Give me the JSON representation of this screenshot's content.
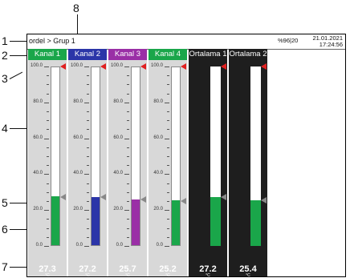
{
  "callouts": [
    "1",
    "2",
    "3",
    "4",
    "5",
    "6",
    "7",
    "8"
  ],
  "header": {
    "breadcrumb": "ordel > Grup 1",
    "percent": "%96|20",
    "date": "21.01.2021",
    "time": "17:24:56"
  },
  "colors": {
    "kanal1": "#1aa64a",
    "kanal2": "#2b35a8",
    "kanal3": "#9a2fa6",
    "kanal4": "#1aa64a",
    "ortalama": "#1aa64a",
    "channel_bg": "#d8d8d8",
    "dark_bg": "#1e1e1e",
    "marker_red": "#e02020"
  },
  "scale_labels": [
    "100.0",
    "80.0",
    "60.0",
    "40.0",
    "20.0",
    "0.0"
  ],
  "channels": [
    {
      "name": "Kanal 1",
      "value": "27.3",
      "unit": "°C",
      "level": 0.273,
      "style": "light",
      "color": "#1aa64a"
    },
    {
      "name": "Kanal 2",
      "value": "27.2",
      "unit": "°C",
      "level": 0.272,
      "style": "light",
      "color": "#2b35a8"
    },
    {
      "name": "Kanal 3",
      "value": "25.7",
      "unit": "°C",
      "level": 0.257,
      "style": "light",
      "color": "#9a2fa6"
    },
    {
      "name": "Kanal 4",
      "value": "25.2",
      "unit": "°C",
      "level": 0.252,
      "style": "light",
      "color": "#1aa64a"
    },
    {
      "name": "Ortalama 1",
      "value": "27.2",
      "unit": "°C",
      "level": 0.272,
      "style": "dark",
      "color": "#1aa64a"
    },
    {
      "name": "Ortalama 2",
      "value": "25.4",
      "unit": "°C",
      "level": 0.254,
      "style": "dark",
      "color": "#1aa64a"
    }
  ]
}
